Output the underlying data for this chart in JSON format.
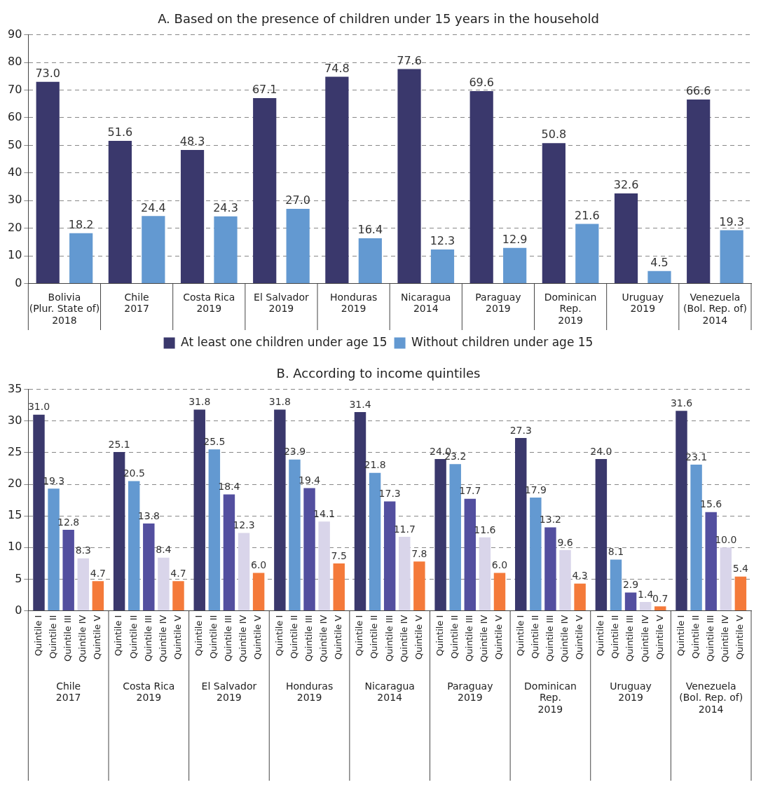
{
  "chart_data": [
    {
      "type": "bar",
      "title": "A. Based on the presence of children under 15 years in the household",
      "categories": [
        "Bolivia\n(Plur. State of)\n2018",
        "Chile\n2017",
        "Costa Rica\n2019",
        "El Salvador\n2019",
        "Honduras\n2019",
        "Nicaragua\n2014",
        "Paraguay\n2019",
        "Dominican\nRep.\n2019",
        "Uruguay\n2019",
        "Venezuela\n(Bol. Rep. of)\n2014"
      ],
      "series": [
        {
          "name": "At least one children under age 15",
          "color": "#3a386c",
          "values": [
            73.0,
            51.6,
            48.3,
            67.1,
            74.8,
            77.6,
            69.6,
            50.8,
            32.6,
            66.6
          ],
          "value_labels": [
            "73.0",
            "51.6",
            "48.3",
            "67.1",
            "74.8",
            "77.6",
            "69.6",
            "50.8",
            "32.6",
            "66.6"
          ]
        },
        {
          "name": "Without children under age 15",
          "color": "#6399d1",
          "values": [
            18.2,
            24.4,
            24.3,
            27.0,
            16.4,
            12.3,
            12.9,
            21.6,
            4.5,
            19.3
          ],
          "value_labels": [
            "18.2",
            "24.4",
            "24.3",
            "27.0",
            "16.4",
            "12.3",
            "12.9",
            "21.6",
            "4.5",
            "19.3"
          ]
        }
      ],
      "ylim": [
        0,
        90
      ],
      "yticks": [
        0,
        10,
        20,
        30,
        40,
        50,
        60,
        70,
        80,
        90
      ],
      "grid": "y",
      "legend": "bottom"
    },
    {
      "type": "bar",
      "title": "B. According to income quintiles",
      "categories": [
        "Chile\n2017",
        "Costa Rica\n2019",
        "El Salvador\n2019",
        "Honduras\n2019",
        "Nicaragua\n2014",
        "Paraguay\n2019",
        "Dominican\nRep.\n2019",
        "Uruguay\n2019",
        "Venezuela\n(Bol. Rep. of)\n2014"
      ],
      "series": [
        {
          "name": "Quintile I",
          "color": "#3a386c",
          "values": [
            31.0,
            25.1,
            31.8,
            31.8,
            31.4,
            24.0,
            27.3,
            24.0,
            31.6
          ],
          "value_labels": [
            "31.0",
            "25.1",
            "31.8",
            "31.8",
            "31.4",
            "24.0",
            "27.3",
            "24.0",
            "31.6"
          ]
        },
        {
          "name": "Quintile II",
          "color": "#6399d1",
          "values": [
            19.3,
            20.5,
            25.5,
            23.9,
            21.8,
            23.2,
            17.9,
            8.1,
            23.1
          ],
          "value_labels": [
            "19.3",
            "20.5",
            "25.5",
            "23.9",
            "21.8",
            "23.2",
            "17.9",
            "8.1",
            "23.1"
          ]
        },
        {
          "name": "Quintile III",
          "color": "#534f9f",
          "values": [
            12.8,
            13.8,
            18.4,
            19.4,
            17.3,
            17.7,
            13.2,
            2.9,
            15.6
          ],
          "value_labels": [
            "12.8",
            "13.8",
            "18.4",
            "19.4",
            "17.3",
            "17.7",
            "13.2",
            "2.9",
            "15.6"
          ]
        },
        {
          "name": "Quintile IV",
          "color": "#d9d5ea",
          "values": [
            8.3,
            8.4,
            12.3,
            14.1,
            11.7,
            11.6,
            9.6,
            1.4,
            10.0
          ],
          "value_labels": [
            "8.3",
            "8.4",
            "12.3",
            "14.1",
            "11.7",
            "11.6",
            "9.6",
            "1.4",
            "10.0"
          ]
        },
        {
          "name": "Quintile V",
          "color": "#f47a3a",
          "values": [
            4.7,
            4.7,
            6.0,
            7.5,
            7.8,
            6.0,
            4.3,
            0.7,
            5.4
          ],
          "value_labels": [
            "4.7",
            "4.7",
            "6.0",
            "7.5",
            "7.8",
            "6.0",
            "4.3",
            "0.7",
            "5.4"
          ]
        }
      ],
      "ylim": [
        0,
        35
      ],
      "yticks": [
        0,
        5,
        10,
        15,
        20,
        25,
        30,
        35
      ],
      "grid": "y",
      "legend": false
    }
  ]
}
